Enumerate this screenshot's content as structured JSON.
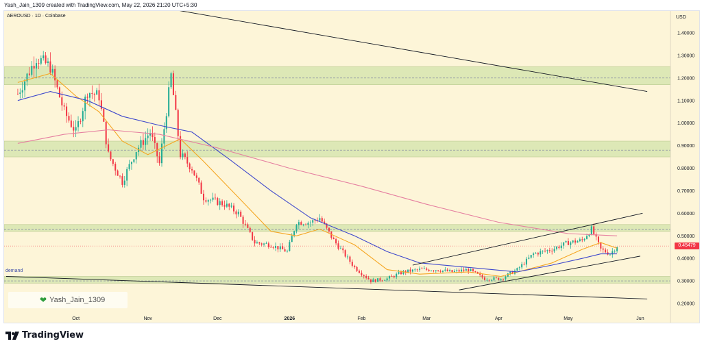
{
  "header": {
    "created_text": "Yash_Jain_1309 created with TradingView.com, May 22, 2026 21:20 UTC+5:30"
  },
  "chart": {
    "symbol_line": "AEROUSD · 1D · Coinbase",
    "currency": "USD",
    "watermark": "Yash_Jain_1309",
    "zone_label": "demand",
    "last_price_label": "0.45479"
  },
  "footer": {
    "brand": "TradingView"
  },
  "colors": {
    "background": "#fdf5d8",
    "zone": "#d9e7b3",
    "up": "#22ab94",
    "down": "#f23645",
    "ema_fast": "#f5a623",
    "ema_mid": "#3f48cc",
    "ema_slow": "#e57fa0",
    "trendline": "#131722",
    "zone_dash": "#7a7fa0",
    "watermark_heart": "#2e9d3c"
  },
  "chart_data": {
    "type": "candlestick",
    "y_axis": {
      "side": "right",
      "scale": "linear",
      "range": [
        0.18,
        1.5
      ],
      "ticks": [
        "1.40000",
        "1.30000",
        "1.20000",
        "1.10000",
        "1.00000",
        "0.90000",
        "0.80000",
        "0.70000",
        "0.60000",
        "0.50000",
        "0.40000",
        "0.30000",
        "0.20000"
      ]
    },
    "x_axis": {
      "ticks": [
        "Oct",
        "Nov",
        "Dec",
        "2026",
        "Feb",
        "Mar",
        "Apr",
        "May",
        "Jun"
      ]
    },
    "last_price": 0.45479,
    "zones": [
      {
        "label": "",
        "from": 1.17,
        "to": 1.25,
        "dashed_level": 1.2
      },
      {
        "label": "",
        "from": 0.85,
        "to": 0.92,
        "dashed_level": 0.88
      },
      {
        "label": "",
        "from": 0.52,
        "to": 0.55,
        "dashed_level": 0.53
      },
      {
        "label": "demand",
        "from": 0.29,
        "to": 0.32,
        "dashed_level": 0.3
      }
    ],
    "candle_keyframes": [
      [
        "2025-09-06",
        1.13
      ],
      [
        "2025-09-14",
        1.29
      ],
      [
        "2025-09-20",
        1.25
      ],
      [
        "2025-09-26",
        1.05
      ],
      [
        "2025-10-01",
        0.96
      ],
      [
        "2025-10-06",
        1.14
      ],
      [
        "2025-10-11",
        1.12
      ],
      [
        "2025-10-15",
        0.86
      ],
      [
        "2025-10-21",
        0.74
      ],
      [
        "2025-10-27",
        0.88
      ],
      [
        "2025-11-02",
        0.96
      ],
      [
        "2025-11-06",
        0.82
      ],
      [
        "2025-11-11",
        1.21
      ],
      [
        "2025-11-15",
        0.86
      ],
      [
        "2025-11-20",
        0.8
      ],
      [
        "2025-11-25",
        0.67
      ],
      [
        "2025-12-04",
        0.64
      ],
      [
        "2025-12-10",
        0.6
      ],
      [
        "2025-12-17",
        0.47
      ],
      [
        "2025-12-24",
        0.46
      ],
      [
        "2025-12-31",
        0.43
      ],
      [
        "2026-01-04",
        0.56
      ],
      [
        "2026-01-10",
        0.56
      ],
      [
        "2026-01-14",
        0.58
      ],
      [
        "2026-01-20",
        0.48
      ],
      [
        "2026-01-29",
        0.36
      ],
      [
        "2026-02-05",
        0.3
      ],
      [
        "2026-02-12",
        0.31
      ],
      [
        "2026-02-19",
        0.34
      ],
      [
        "2026-02-26",
        0.35
      ],
      [
        "2026-03-05",
        0.35
      ],
      [
        "2026-03-12",
        0.34
      ],
      [
        "2026-03-19",
        0.35
      ],
      [
        "2026-03-26",
        0.31
      ],
      [
        "2026-04-02",
        0.31
      ],
      [
        "2026-04-09",
        0.35
      ],
      [
        "2026-04-16",
        0.42
      ],
      [
        "2026-04-24",
        0.44
      ],
      [
        "2026-05-01",
        0.47
      ],
      [
        "2026-05-07",
        0.48
      ],
      [
        "2026-05-11",
        0.53
      ],
      [
        "2026-05-15",
        0.44
      ],
      [
        "2026-05-19",
        0.42
      ],
      [
        "2026-05-22",
        0.455
      ]
    ],
    "moving_averages": [
      {
        "color": "#f5a623",
        "points": [
          [
            "2025-09-06",
            1.18
          ],
          [
            "2025-09-20",
            1.22
          ],
          [
            "2025-10-01",
            1.12
          ],
          [
            "2025-10-11",
            1.05
          ],
          [
            "2025-10-21",
            0.92
          ],
          [
            "2025-11-01",
            0.86
          ],
          [
            "2025-11-15",
            0.93
          ],
          [
            "2025-11-25",
            0.83
          ],
          [
            "2025-12-10",
            0.67
          ],
          [
            "2025-12-24",
            0.52
          ],
          [
            "2026-01-04",
            0.5
          ],
          [
            "2026-01-14",
            0.53
          ],
          [
            "2026-01-29",
            0.46
          ],
          [
            "2026-02-12",
            0.35
          ],
          [
            "2026-02-26",
            0.33
          ],
          [
            "2026-03-19",
            0.34
          ],
          [
            "2026-04-02",
            0.32
          ],
          [
            "2026-04-24",
            0.38
          ],
          [
            "2026-05-07",
            0.44
          ],
          [
            "2026-05-15",
            0.47
          ],
          [
            "2026-05-22",
            0.445
          ]
        ]
      },
      {
        "color": "#3f48cc",
        "points": [
          [
            "2025-09-06",
            1.1
          ],
          [
            "2025-09-20",
            1.14
          ],
          [
            "2025-10-06",
            1.1
          ],
          [
            "2025-10-21",
            1.03
          ],
          [
            "2025-11-06",
            0.99
          ],
          [
            "2025-11-20",
            0.96
          ],
          [
            "2025-12-06",
            0.84
          ],
          [
            "2025-12-24",
            0.7
          ],
          [
            "2026-01-10",
            0.58
          ],
          [
            "2026-01-29",
            0.5
          ],
          [
            "2026-02-12",
            0.43
          ],
          [
            "2026-02-26",
            0.38
          ],
          [
            "2026-03-19",
            0.36
          ],
          [
            "2026-04-09",
            0.34
          ],
          [
            "2026-04-24",
            0.37
          ],
          [
            "2026-05-07",
            0.4
          ],
          [
            "2026-05-15",
            0.42
          ],
          [
            "2026-05-22",
            0.42
          ]
        ]
      },
      {
        "color": "#e57fa0",
        "points": [
          [
            "2025-09-06",
            0.91
          ],
          [
            "2025-09-26",
            0.95
          ],
          [
            "2025-10-15",
            0.97
          ],
          [
            "2025-11-06",
            0.95
          ],
          [
            "2025-12-01",
            0.89
          ],
          [
            "2026-01-01",
            0.8
          ],
          [
            "2026-02-01",
            0.72
          ],
          [
            "2026-03-01",
            0.64
          ],
          [
            "2026-04-01",
            0.56
          ],
          [
            "2026-05-01",
            0.51
          ],
          [
            "2026-05-22",
            0.5
          ]
        ]
      }
    ],
    "trendlines": [
      [
        [
          "2025-09-30",
          1.58
        ],
        [
          "2026-06-04",
          1.14
        ]
      ],
      [
        [
          "2025-09-01",
          0.32
        ],
        [
          "2026-06-04",
          0.22
        ]
      ],
      [
        [
          "2026-02-23",
          0.37
        ],
        [
          "2026-06-02",
          0.6
        ]
      ],
      [
        [
          "2026-03-15",
          0.26
        ],
        [
          "2026-06-01",
          0.41
        ]
      ]
    ]
  }
}
